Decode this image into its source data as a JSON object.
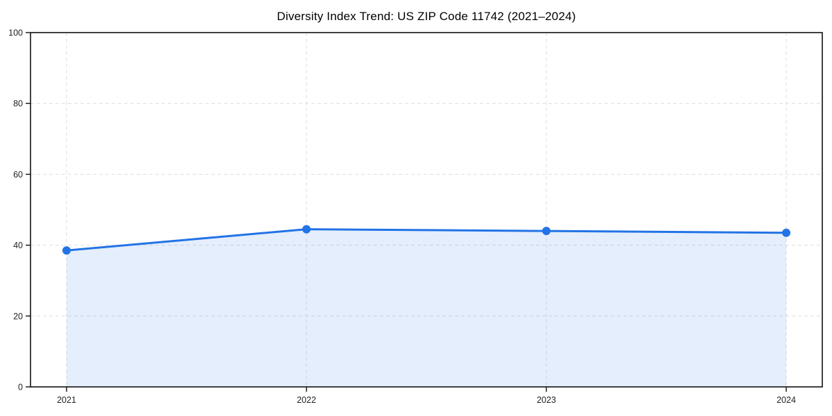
{
  "chart_data": {
    "type": "line",
    "title": "Diversity Index Trend: US ZIP Code 11742 (2021–2024)",
    "x": [
      "2021",
      "2022",
      "2023",
      "2024"
    ],
    "series": [
      {
        "name": "Diversity Index",
        "values": [
          38.5,
          44.5,
          44.0,
          43.5
        ]
      }
    ],
    "xlabel": "",
    "ylabel": "",
    "ylim": [
      0,
      100
    ],
    "yticks": [
      0,
      20,
      40,
      60,
      80,
      100
    ],
    "grid": true,
    "grid_style": "dashed",
    "legend_position": "none",
    "area_fill": true,
    "marker": "circle",
    "colors": {
      "line": "#2273e6",
      "marker": "#2273e6",
      "fill": "#2273e6",
      "fill_opacity": 0.12,
      "grid": "#dedede",
      "axis": "#111111",
      "tick_label": "#222222",
      "title": "#000000",
      "background": "#ffffff"
    }
  }
}
